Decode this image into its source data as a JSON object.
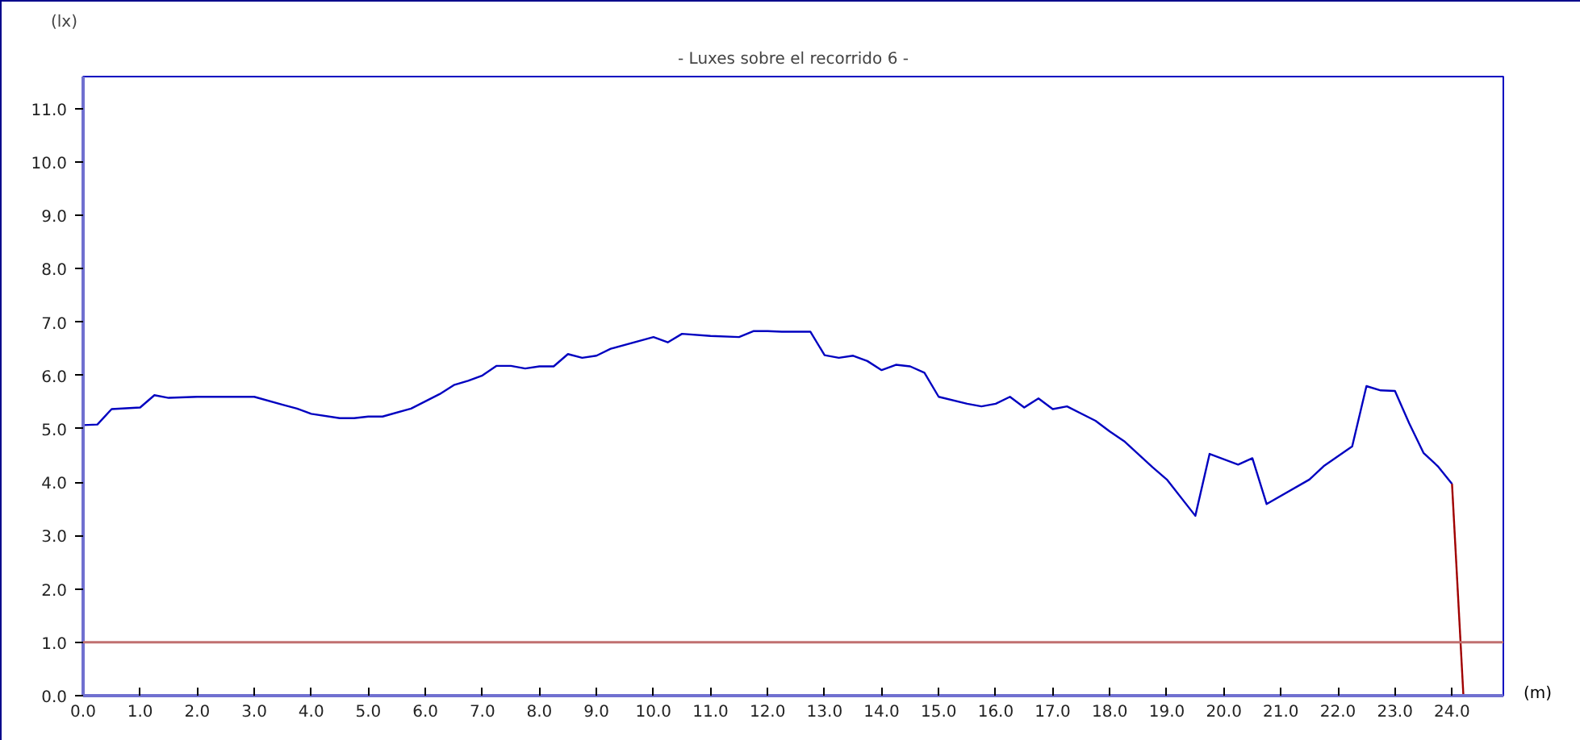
{
  "chart_data": {
    "type": "line",
    "title": "- Luxes sobre el recorrido 6 -",
    "xlabel": "(m)",
    "ylabel": "(lx)",
    "xlim": [
      0,
      24.9
    ],
    "ylim": [
      0,
      11.6
    ],
    "xticks": [
      {
        "value": 0,
        "label": "0.0"
      },
      {
        "value": 1,
        "label": "1.0"
      },
      {
        "value": 2,
        "label": "2.0"
      },
      {
        "value": 3,
        "label": "3.0"
      },
      {
        "value": 4,
        "label": "4.0"
      },
      {
        "value": 5,
        "label": "5.0"
      },
      {
        "value": 6,
        "label": "6.0"
      },
      {
        "value": 7,
        "label": "7.0"
      },
      {
        "value": 8,
        "label": "8.0"
      },
      {
        "value": 9,
        "label": "9.0"
      },
      {
        "value": 10,
        "label": "10.0"
      },
      {
        "value": 11,
        "label": "11.0"
      },
      {
        "value": 12,
        "label": "12.0"
      },
      {
        "value": 13,
        "label": "13.0"
      },
      {
        "value": 14,
        "label": "14.0"
      },
      {
        "value": 15,
        "label": "15.0"
      },
      {
        "value": 16,
        "label": "16.0"
      },
      {
        "value": 17,
        "label": "17.0"
      },
      {
        "value": 18,
        "label": "18.0"
      },
      {
        "value": 19,
        "label": "19.0"
      },
      {
        "value": 20,
        "label": "20.0"
      },
      {
        "value": 21,
        "label": "21.0"
      },
      {
        "value": 22,
        "label": "22.0"
      },
      {
        "value": 23,
        "label": "23.0"
      },
      {
        "value": 24,
        "label": "24.0"
      }
    ],
    "yticks": [
      {
        "value": 0,
        "label": "0.0"
      },
      {
        "value": 1,
        "label": "1.0"
      },
      {
        "value": 2,
        "label": "2.0"
      },
      {
        "value": 3,
        "label": "3.0"
      },
      {
        "value": 4,
        "label": "4.0"
      },
      {
        "value": 5,
        "label": "5.0"
      },
      {
        "value": 6,
        "label": "6.0"
      },
      {
        "value": 7,
        "label": "7.0"
      },
      {
        "value": 8,
        "label": "8.0"
      },
      {
        "value": 9,
        "label": "9.0"
      },
      {
        "value": 10,
        "label": "10.0"
      },
      {
        "value": 11,
        "label": "11.0"
      }
    ],
    "grid": false,
    "marker": "none",
    "line_style": "solid",
    "series": [
      {
        "color": "#0000c0",
        "x": [
          0,
          0.25,
          0.5,
          1.0,
          1.25,
          1.5,
          2.0,
          3.0,
          3.5,
          3.75,
          4.0,
          4.5,
          4.75,
          5.0,
          5.25,
          5.75,
          6.25,
          6.5,
          6.75,
          7.0,
          7.25,
          7.5,
          7.75,
          8.0,
          8.25,
          8.5,
          8.75,
          9.0,
          9.25,
          10.0,
          10.25,
          10.5,
          11.0,
          11.5,
          11.75,
          12.0,
          12.25,
          12.75,
          13.0,
          13.25,
          13.5,
          13.75,
          14.0,
          14.25,
          14.5,
          14.75,
          15.0,
          15.5,
          15.75,
          16.0,
          16.25,
          16.5,
          16.75,
          17.0,
          17.25,
          17.75,
          18.0,
          18.25,
          18.75,
          19.0,
          19.5,
          19.75,
          20.25,
          20.5,
          20.75,
          21.5,
          21.75,
          22.25,
          22.5,
          22.75,
          23.0,
          23.25,
          23.5,
          23.75,
          24.0
        ],
        "values": [
          5.07,
          5.08,
          5.37,
          5.4,
          5.63,
          5.58,
          5.6,
          5.6,
          5.45,
          5.38,
          5.28,
          5.2,
          5.2,
          5.23,
          5.23,
          5.38,
          5.65,
          5.82,
          5.9,
          6.0,
          6.18,
          6.18,
          6.13,
          6.17,
          6.17,
          6.4,
          6.33,
          6.37,
          6.5,
          6.72,
          6.62,
          6.78,
          6.74,
          6.72,
          6.83,
          6.83,
          6.82,
          6.82,
          6.38,
          6.33,
          6.37,
          6.27,
          6.1,
          6.2,
          6.17,
          6.05,
          5.6,
          5.47,
          5.42,
          5.47,
          5.6,
          5.4,
          5.57,
          5.37,
          5.42,
          5.15,
          4.95,
          4.77,
          4.28,
          4.05,
          3.37,
          4.53,
          4.33,
          4.45,
          3.59,
          4.05,
          4.3,
          4.67,
          5.8,
          5.72,
          5.71,
          5.1,
          4.55,
          4.3,
          3.97
        ]
      },
      {
        "color": "#a00000",
        "x": [
          24.0,
          24.2
        ],
        "values": [
          3.97,
          0
        ]
      }
    ],
    "ref_lines": [
      {
        "axis": "y",
        "value": 1.0,
        "color": "#c07070"
      }
    ]
  }
}
